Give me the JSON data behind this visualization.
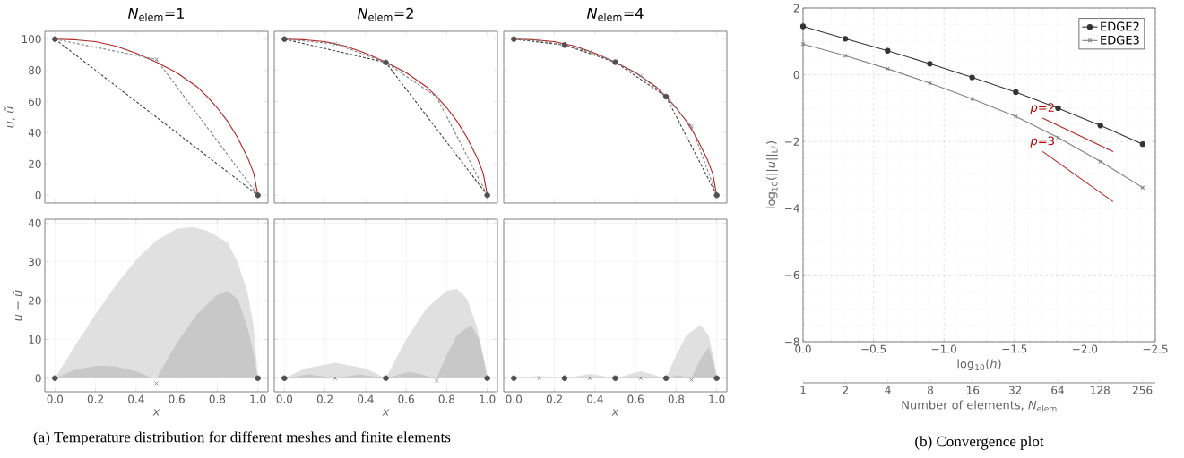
{
  "chart_data": [
    {
      "type": "line",
      "title": "*N*$_{elem}$=1",
      "ylabel": "*u*, *ũ*",
      "xlim": [
        -0.05,
        1.05
      ],
      "ylim": [
        -5,
        105
      ],
      "xticks": [
        0,
        0.2,
        0.4,
        0.6,
        0.8,
        1
      ],
      "yticks": [
        0,
        20,
        40,
        60,
        80,
        100
      ],
      "tick_labels": "y",
      "series": [
        {
          "color": "#b22222",
          "line_style": "solid",
          "marker": "none",
          "x": [
            0,
            0.1,
            0.2,
            0.3,
            0.4,
            0.5,
            0.6,
            0.7,
            0.75,
            0.8,
            0.85,
            0.9,
            0.95,
            0.98,
            1
          ],
          "values": [
            100,
            99.6,
            98.4,
            95.5,
            91,
            85.2,
            78.5,
            69.5,
            63.2,
            56,
            47.5,
            37,
            24,
            14,
            0
          ]
        },
        {
          "color": "#404040",
          "line_style": "dashed",
          "marker": "none",
          "x": [
            0,
            1
          ],
          "values": [
            100,
            0
          ]
        },
        {
          "color": "#808080",
          "line_style": "dashed",
          "marker": "none",
          "x": [
            0,
            0.5,
            1
          ],
          "values": [
            100,
            87,
            0
          ]
        },
        {
          "type": "scatter",
          "color": "#808080",
          "marker": "cross",
          "x": [
            0.5
          ],
          "values": [
            87
          ]
        },
        {
          "type": "scatter",
          "color": "#505050",
          "marker": "circle",
          "x": [
            0,
            1
          ],
          "values": [
            100,
            0
          ]
        }
      ]
    },
    {
      "type": "line",
      "title": "*N*$_{elem}$=2",
      "xlim": [
        -0.05,
        1.05
      ],
      "ylim": [
        -5,
        105
      ],
      "xticks": [
        0,
        0.2,
        0.4,
        0.6,
        0.8,
        1
      ],
      "yticks": [
        0,
        20,
        40,
        60,
        80,
        100
      ],
      "tick_labels": false,
      "series": [
        {
          "color": "#b22222",
          "line_style": "solid",
          "marker": "none",
          "x": [
            0,
            0.1,
            0.2,
            0.3,
            0.4,
            0.5,
            0.6,
            0.7,
            0.75,
            0.8,
            0.85,
            0.9,
            0.95,
            0.98,
            1
          ],
          "values": [
            100,
            99.6,
            98.4,
            95.5,
            91,
            85.2,
            78.5,
            69.5,
            63.2,
            56,
            47.5,
            37,
            24,
            14,
            0
          ]
        },
        {
          "color": "#404040",
          "line_style": "dashed",
          "marker": "none",
          "x": [
            0,
            0.5,
            1
          ],
          "values": [
            100,
            85,
            0
          ]
        },
        {
          "color": "#808080",
          "line_style": "dashed",
          "marker": "none",
          "x": [
            0,
            0.25,
            0.5,
            0.75,
            1
          ],
          "values": [
            100,
            97,
            85,
            63,
            0
          ]
        },
        {
          "type": "scatter",
          "color": "#808080",
          "marker": "cross",
          "x": [
            0.25,
            0.75
          ],
          "values": [
            97,
            63
          ]
        },
        {
          "type": "scatter",
          "color": "#505050",
          "marker": "circle",
          "x": [
            0,
            0.5,
            1
          ],
          "values": [
            100,
            85,
            0
          ]
        }
      ]
    },
    {
      "type": "line",
      "title": "*N*$_{elem}$=4",
      "xlim": [
        -0.05,
        1.05
      ],
      "ylim": [
        -5,
        105
      ],
      "xticks": [
        0,
        0.2,
        0.4,
        0.6,
        0.8,
        1
      ],
      "yticks": [
        0,
        20,
        40,
        60,
        80,
        100
      ],
      "tick_labels": false,
      "series": [
        {
          "color": "#b22222",
          "line_style": "solid",
          "marker": "none",
          "x": [
            0,
            0.1,
            0.2,
            0.3,
            0.4,
            0.5,
            0.6,
            0.7,
            0.75,
            0.8,
            0.85,
            0.9,
            0.95,
            0.98,
            1
          ],
          "values": [
            100,
            99.6,
            98.4,
            95.5,
            91,
            85.2,
            78.5,
            69.5,
            63.2,
            56,
            47.5,
            37,
            24,
            14,
            0
          ]
        },
        {
          "color": "#404040",
          "line_style": "dashed",
          "marker": "none",
          "x": [
            0,
            0.25,
            0.5,
            0.75,
            1
          ],
          "values": [
            100,
            96.2,
            85.2,
            63.2,
            0
          ]
        },
        {
          "color": "#808080",
          "line_style": "dashed",
          "marker": "none",
          "x": [
            0,
            0.125,
            0.25,
            0.375,
            0.5,
            0.625,
            0.75,
            0.875,
            1
          ],
          "values": [
            100,
            99,
            96.2,
            91.8,
            85.2,
            76.5,
            63.2,
            44.2,
            0
          ]
        },
        {
          "type": "scatter",
          "color": "#808080",
          "marker": "cross",
          "x": [
            0.125,
            0.375,
            0.625,
            0.875
          ],
          "values": [
            99,
            91.8,
            76.5,
            44.2
          ]
        },
        {
          "type": "scatter",
          "color": "#505050",
          "marker": "circle",
          "x": [
            0,
            0.25,
            0.5,
            0.75,
            1
          ],
          "values": [
            100,
            96.2,
            85.2,
            63.2,
            0
          ]
        }
      ]
    },
    {
      "type": "area",
      "xlabel": "*x*",
      "ylabel": "*u* − *ũ*",
      "xlim": [
        -0.05,
        1.05
      ],
      "ylim": [
        -3.5,
        41
      ],
      "xticks": [
        {
          "value": 0,
          "label": "0.0"
        },
        {
          "value": 0.2,
          "label": "0.2"
        },
        {
          "value": 0.4,
          "label": "0.4"
        },
        {
          "value": 0.6,
          "label": "0.6"
        },
        {
          "value": 0.8,
          "label": "0.8"
        },
        {
          "value": 1,
          "label": "1.0"
        }
      ],
      "yticks": [
        0,
        10,
        20,
        30,
        40
      ],
      "grid": true,
      "series": [
        {
          "color": "#e0e0e0",
          "x": [
            0,
            0.1,
            0.2,
            0.3,
            0.4,
            0.5,
            0.6,
            0.68,
            0.75,
            0.8,
            0.85,
            0.9,
            0.95,
            0.98,
            1
          ],
          "values": [
            0,
            8.5,
            16.5,
            24,
            30.5,
            35.5,
            38.5,
            39,
            38,
            36.5,
            35,
            30,
            22,
            13,
            0
          ]
        },
        {
          "color": "#c8c8c8",
          "x": [
            0,
            0.1,
            0.2,
            0.25,
            0.3,
            0.4,
            0.48,
            0.5,
            0.6,
            0.7,
            0.8,
            0.85,
            0.9,
            0.95,
            0.98,
            1
          ],
          "values": [
            0,
            2.2,
            3.2,
            3.2,
            3,
            1.8,
            0,
            0,
            9,
            16.5,
            21.5,
            22.5,
            20.5,
            13,
            6,
            0
          ]
        },
        {
          "type": "scatter",
          "color": "#808080",
          "marker": "cross",
          "x": [
            0.5
          ],
          "values": [
            -1.3
          ]
        },
        {
          "type": "scatter",
          "color": "#505050",
          "marker": "circle",
          "x": [
            0,
            1
          ],
          "values": [
            0,
            0
          ]
        }
      ]
    },
    {
      "type": "area",
      "xlabel": "*x*",
      "xlim": [
        -0.05,
        1.05
      ],
      "ylim": [
        -3.5,
        41
      ],
      "xticks": [
        {
          "value": 0,
          "label": "0.0"
        },
        {
          "value": 0.2,
          "label": "0.2"
        },
        {
          "value": 0.4,
          "label": "0.4"
        },
        {
          "value": 0.6,
          "label": "0.6"
        },
        {
          "value": 0.8,
          "label": "0.8"
        },
        {
          "value": 1,
          "label": "1.0"
        }
      ],
      "yticks": [
        0,
        10,
        20,
        30,
        40
      ],
      "grid": true,
      "tick_labels": "x",
      "annotations": [
        "(a) Temperature distribution for different meshes and finite elements"
      ],
      "series": [
        {
          "color": "#e0e0e0",
          "x": [
            0,
            0.1,
            0.25,
            0.4,
            0.5,
            0.6,
            0.7,
            0.8,
            0.85,
            0.9,
            0.95,
            0.98,
            1
          ],
          "values": [
            0,
            2.5,
            4,
            2.5,
            0,
            10,
            18,
            22.5,
            23,
            20.5,
            13,
            6,
            0
          ]
        },
        {
          "color": "#c8c8c8",
          "x": [
            0,
            0.12,
            0.25,
            0.37,
            0.5,
            0.62,
            0.75,
            0.8,
            0.85,
            0.92,
            0.96,
            0.99,
            1
          ],
          "values": [
            0,
            1,
            0,
            1,
            0,
            1.7,
            0,
            6,
            11,
            13.8,
            10,
            3,
            0
          ]
        },
        {
          "type": "scatter",
          "color": "#808080",
          "marker": "cross",
          "x": [
            0.25,
            0.75
          ],
          "values": [
            0,
            -0.6
          ]
        },
        {
          "type": "scatter",
          "color": "#505050",
          "marker": "circle",
          "x": [
            0,
            0.5,
            1
          ],
          "values": [
            0,
            0,
            0
          ]
        }
      ]
    },
    {
      "type": "area",
      "xlabel": "*x*",
      "xlim": [
        -0.05,
        1.05
      ],
      "ylim": [
        -3.5,
        41
      ],
      "xticks": [
        {
          "value": 0,
          "label": "0.0"
        },
        {
          "value": 0.2,
          "label": "0.2"
        },
        {
          "value": 0.4,
          "label": "0.4"
        },
        {
          "value": 0.6,
          "label": "0.6"
        },
        {
          "value": 0.8,
          "label": "0.8"
        },
        {
          "value": 1,
          "label": "1.0"
        }
      ],
      "yticks": [
        0,
        10,
        20,
        30,
        40
      ],
      "grid": true,
      "tick_labels": "x",
      "series": [
        {
          "color": "#e0e0e0",
          "x": [
            0,
            0.125,
            0.25,
            0.375,
            0.5,
            0.625,
            0.75,
            0.8,
            0.85,
            0.92,
            0.96,
            0.99,
            1
          ],
          "values": [
            0,
            0.6,
            0,
            1.1,
            0,
            1.8,
            0,
            6,
            11,
            13.8,
            11,
            4,
            0
          ]
        },
        {
          "color": "#c8c8c8",
          "x": [
            0,
            0.1,
            0.25,
            0.375,
            0.5,
            0.62,
            0.75,
            0.81,
            0.875,
            0.92,
            0.96,
            0.985,
            1
          ],
          "values": [
            0,
            0.1,
            0,
            0.2,
            0,
            0.3,
            0,
            0.8,
            0,
            5,
            8,
            4,
            0
          ]
        },
        {
          "type": "scatter",
          "color": "#808080",
          "marker": "cross",
          "x": [
            0.125,
            0.375,
            0.625,
            0.875
          ],
          "values": [
            0,
            0,
            0,
            -0.4
          ]
        },
        {
          "type": "scatter",
          "color": "#505050",
          "marker": "circle",
          "x": [
            0,
            0.25,
            0.5,
            0.75,
            1
          ],
          "values": [
            0,
            0,
            0,
            0,
            0
          ]
        }
      ]
    },
    {
      "type": "line",
      "xlabel": "log$_{10}$(*h*)",
      "ylabel": "log$_{10}$(||*u*||$_{L²}$)",
      "x2label": "Number of elements, *N*$_{elem}$",
      "xlim": [
        0,
        -2.5
      ],
      "ylim": [
        -8,
        2
      ],
      "xticks": [
        {
          "value": 0,
          "label": "0.0"
        },
        {
          "value": -0.5,
          "label": "−0.5"
        },
        {
          "value": -1,
          "label": "−1.0"
        },
        {
          "value": -1.5,
          "label": "−1.5"
        },
        {
          "value": -2,
          "label": "−2.0"
        },
        {
          "value": -2.5,
          "label": "−2.5"
        }
      ],
      "yticks": [
        {
          "value": -8,
          "label": "−8"
        },
        {
          "value": -6,
          "label": "−6"
        },
        {
          "value": -4,
          "label": "−4"
        },
        {
          "value": -2,
          "label": "−2"
        },
        0,
        2
      ],
      "log": "x2",
      "x2lim": [
        1,
        316
      ],
      "x2ticks": [
        1,
        2,
        4,
        8,
        16,
        32,
        64,
        128,
        256
      ],
      "grid": true,
      "legend": "top right",
      "annotations": [
        {
          "text": "*p*=2",
          "x": -1.7,
          "y": -1.3
        },
        {
          "text": "*p*=3",
          "x": -1.7,
          "y": -2.3
        },
        "(b) Convergence plot"
      ],
      "series": [
        {
          "name": "EDGE2",
          "color": "#333333",
          "marker": "circle",
          "line_style": "solid",
          "x": [
            0,
            -0.3,
            -0.6,
            -0.9,
            -1.2,
            -1.51,
            -1.81,
            -2.11,
            -2.41
          ],
          "values": [
            1.45,
            1.08,
            0.72,
            0.33,
            -0.08,
            -0.52,
            -1.0,
            -1.52,
            -2.08
          ]
        },
        {
          "name": "EDGE3",
          "color": "#808080",
          "marker": "cross",
          "line_style": "solid",
          "x": [
            0,
            -0.3,
            -0.6,
            -0.9,
            -1.2,
            -1.51,
            -1.81,
            -2.11,
            -2.41
          ],
          "values": [
            0.92,
            0.57,
            0.18,
            -0.25,
            -0.72,
            -1.25,
            -1.88,
            -2.6,
            -3.38
          ]
        },
        {
          "color": "#b22222",
          "marker": "none",
          "line_style": "solid",
          "x": [
            -1.7,
            -2.2
          ],
          "values": [
            -1.3,
            -2.3
          ]
        },
        {
          "color": "#b22222",
          "marker": "none",
          "line_style": "solid",
          "x": [
            -1.7,
            -2.2
          ],
          "values": [
            -2.3,
            -3.8
          ]
        }
      ]
    }
  ]
}
